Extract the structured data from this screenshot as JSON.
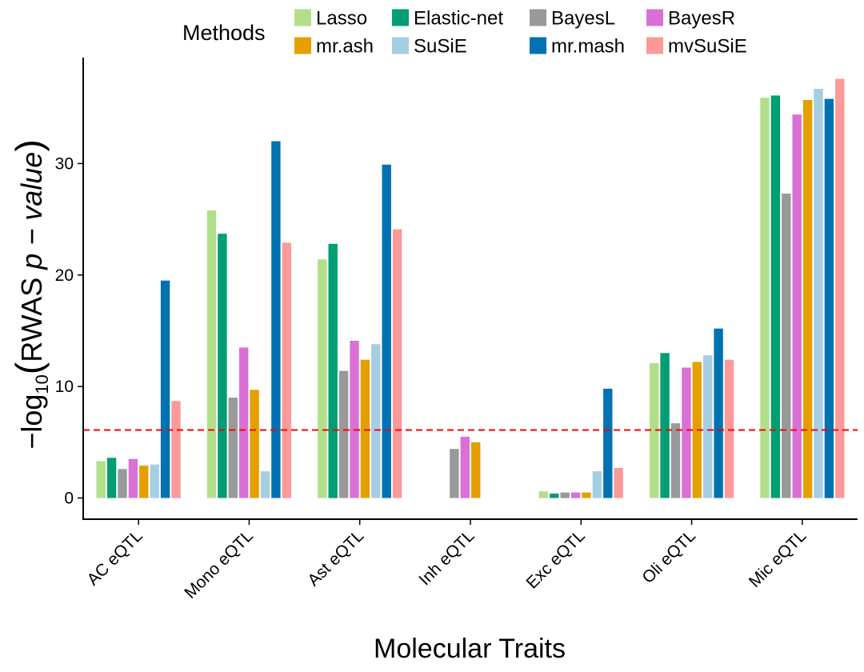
{
  "chart_data": {
    "type": "bar",
    "categories": [
      "AC eQTL",
      "Mono eQTL",
      "Ast eQTL",
      "Inh eQTL",
      "Exc eQTL",
      "Oli eQTL",
      "Mic eQTL"
    ],
    "series": [
      {
        "name": "Lasso",
        "color": "#B2DF8A",
        "values": [
          3.3,
          25.8,
          21.4,
          null,
          0.6,
          12.1,
          35.9
        ]
      },
      {
        "name": "Elastic-net",
        "color": "#009E73",
        "values": [
          3.6,
          23.7,
          22.8,
          null,
          0.4,
          13.0,
          36.1
        ]
      },
      {
        "name": "BayesL",
        "color": "#999999",
        "values": [
          2.6,
          9.0,
          11.4,
          4.4,
          0.5,
          6.7,
          27.3
        ]
      },
      {
        "name": "BayesR",
        "color": "#DA70D6",
        "values": [
          3.5,
          13.5,
          14.1,
          5.5,
          0.5,
          11.7,
          34.4
        ]
      },
      {
        "name": "mr.ash",
        "color": "#E69F00",
        "values": [
          2.9,
          9.7,
          12.4,
          5.0,
          0.5,
          12.2,
          35.7
        ]
      },
      {
        "name": "SuSiE",
        "color": "#A6CEE3",
        "values": [
          3.0,
          2.4,
          13.8,
          null,
          2.4,
          12.8,
          36.7
        ]
      },
      {
        "name": "mr.mash",
        "color": "#0072B2",
        "values": [
          19.5,
          32.0,
          29.9,
          null,
          9.8,
          15.2,
          35.8
        ]
      },
      {
        "name": "mvSuSiE",
        "color": "#FB9A99",
        "values": [
          8.7,
          22.9,
          24.1,
          null,
          2.7,
          12.4,
          37.6
        ]
      }
    ],
    "xlabel": "Molecular Traits",
    "ylabel": {
      "prefix": "−log",
      "subscript": "10",
      "main": "RWAS ",
      "italic": "p − value"
    },
    "ylim": [
      -1.9,
      39.5
    ],
    "yticks": [
      0,
      10,
      20,
      30
    ],
    "threshold": {
      "value": 6.1,
      "color": "#ff0000",
      "style": "dashed"
    },
    "legend": {
      "title": "Methods",
      "placement": "top",
      "columns": 4
    },
    "grid": false
  }
}
